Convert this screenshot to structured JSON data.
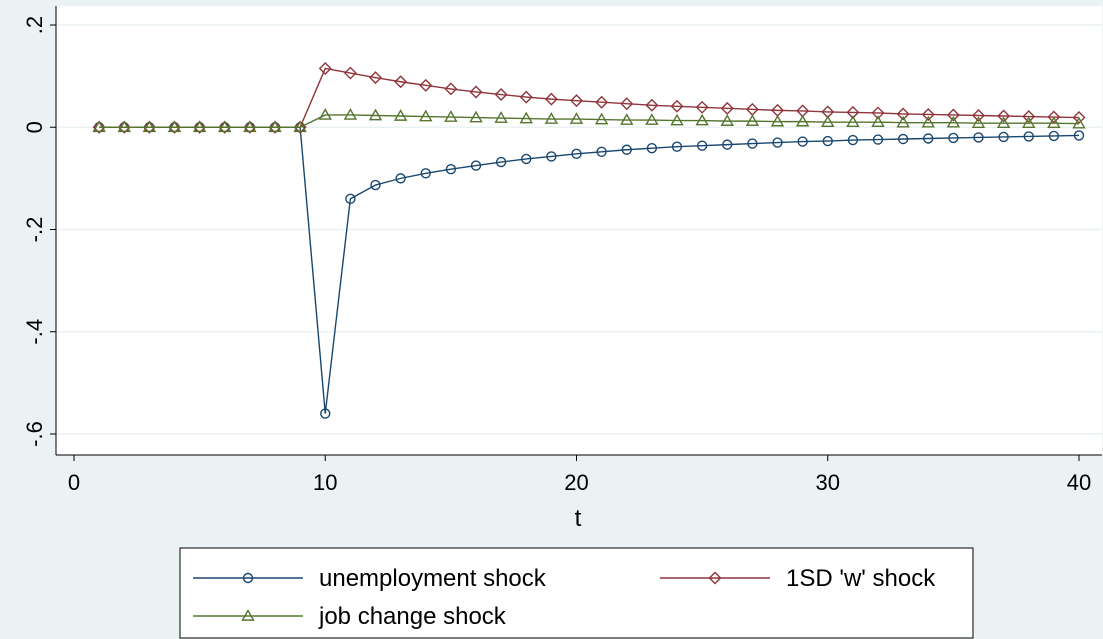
{
  "chart_data": {
    "type": "line",
    "title": "",
    "xlabel": "t",
    "ylabel": "",
    "xlim": [
      0,
      40
    ],
    "ylim": [
      -0.6,
      0.2
    ],
    "x_ticks": [
      0,
      10,
      20,
      30,
      40
    ],
    "x_tick_labels": [
      "0",
      "10",
      "20",
      "30",
      "40"
    ],
    "y_ticks": [
      -0.6,
      -0.4,
      -0.2,
      0,
      0.2
    ],
    "y_tick_labels": [
      "-.6",
      "-.4",
      "-.2",
      "0",
      ".2"
    ],
    "grid": "horizontal",
    "legend_position": "bottom",
    "x": [
      1,
      2,
      3,
      4,
      5,
      6,
      7,
      8,
      9,
      10,
      11,
      12,
      13,
      14,
      15,
      16,
      17,
      18,
      19,
      20,
      21,
      22,
      23,
      24,
      25,
      26,
      27,
      28,
      29,
      30,
      31,
      32,
      33,
      34,
      35,
      36,
      37,
      38,
      39,
      40
    ],
    "series": [
      {
        "name": "unemployment shock",
        "color": "#1a476f",
        "marker": "circle",
        "values": [
          0,
          0,
          0,
          0,
          0,
          0,
          0,
          0,
          0,
          -0.56,
          -0.14,
          -0.113,
          -0.1,
          -0.09,
          -0.082,
          -0.075,
          -0.068,
          -0.062,
          -0.057,
          -0.052,
          -0.048,
          -0.044,
          -0.041,
          -0.038,
          -0.036,
          -0.034,
          -0.032,
          -0.03,
          -0.028,
          -0.027,
          -0.025,
          -0.024,
          -0.023,
          -0.022,
          -0.021,
          -0.02,
          -0.019,
          -0.018,
          -0.017,
          -0.016
        ]
      },
      {
        "name": "1SD 'w' shock",
        "color": "#90353b",
        "marker": "diamond",
        "values": [
          0,
          0,
          0,
          0,
          0,
          0,
          0,
          0,
          0,
          0.115,
          0.106,
          0.097,
          0.089,
          0.082,
          0.075,
          0.069,
          0.064,
          0.059,
          0.055,
          0.052,
          0.049,
          0.046,
          0.043,
          0.041,
          0.039,
          0.037,
          0.035,
          0.033,
          0.032,
          0.03,
          0.029,
          0.028,
          0.026,
          0.025,
          0.024,
          0.023,
          0.022,
          0.021,
          0.02,
          0.019
        ]
      },
      {
        "name": "job change shock",
        "color": "#55752f",
        "marker": "triangle",
        "values": [
          0,
          0,
          0,
          0,
          0,
          0,
          0,
          0,
          0,
          0.024,
          0.024,
          0.023,
          0.022,
          0.021,
          0.02,
          0.019,
          0.018,
          0.017,
          0.016,
          0.016,
          0.015,
          0.014,
          0.014,
          0.013,
          0.013,
          0.012,
          0.012,
          0.011,
          0.011,
          0.01,
          0.01,
          0.01,
          0.009,
          0.009,
          0.009,
          0.008,
          0.008,
          0.008,
          0.008,
          0.007
        ]
      }
    ]
  }
}
